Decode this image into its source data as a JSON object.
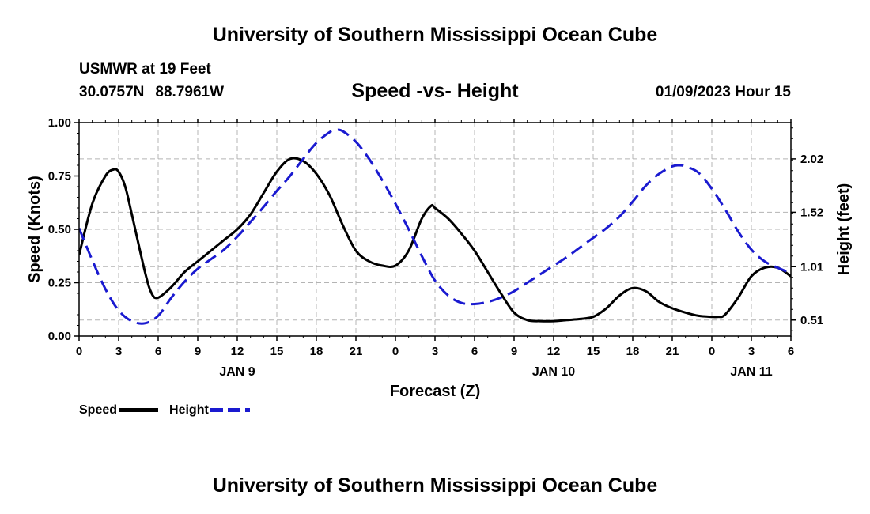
{
  "header": {
    "title": "University of Southern Mississippi Ocean Cube",
    "station": "USMWR at 19 Feet",
    "lat": "30.0757N",
    "lon": "88.7961W",
    "subtitle": "Speed -vs- Height",
    "datetime": "01/09/2023 Hour 15"
  },
  "footer": {
    "title": "University of Southern Mississippi Ocean Cube"
  },
  "legend": {
    "speed": "Speed",
    "height": "Height"
  },
  "colors": {
    "speed": "#000000",
    "height": "#1a1ad0",
    "grid": "#b4b4b4"
  },
  "chart_data": {
    "type": "line",
    "title": "Speed -vs- Height",
    "xlabel": "Forecast (Z)",
    "ylabel": "Speed (Knots)",
    "y2label": "Height (feet)",
    "x_range": [
      0,
      54
    ],
    "ylim": [
      0,
      1.0
    ],
    "y2lim": [
      0.36,
      2.36
    ],
    "x_ticks": [
      0,
      3,
      6,
      9,
      12,
      15,
      18,
      21,
      24,
      27,
      30,
      33,
      36,
      39,
      42,
      45,
      48,
      51,
      54
    ],
    "x_tick_labels": [
      "0",
      "3",
      "6",
      "9",
      "12",
      "15",
      "18",
      "21",
      "0",
      "3",
      "6",
      "9",
      "12",
      "15",
      "18",
      "21",
      "0",
      "3",
      "6"
    ],
    "date_labels": [
      {
        "x": 12,
        "label": "JAN 9"
      },
      {
        "x": 36,
        "label": "JAN 10"
      },
      {
        "x": 51,
        "label": "JAN 11"
      }
    ],
    "y_ticks": [
      0.0,
      0.25,
      0.5,
      0.75,
      1.0
    ],
    "y_tick_labels": [
      "0.00",
      "0.25",
      "0.50",
      "0.75",
      "1.00"
    ],
    "y2_ticks": [
      0.51,
      1.01,
      1.52,
      2.02
    ],
    "y2_tick_labels": [
      "0.51",
      "1.01",
      "1.52",
      "2.02"
    ],
    "grid": true,
    "series": [
      {
        "name": "Speed",
        "axis": "left",
        "style": "solid",
        "x": [
          0,
          1,
          2,
          2.6,
          3,
          3.5,
          4,
          5,
          5.5,
          6,
          7,
          8,
          9,
          10,
          11,
          12,
          13,
          14,
          15,
          16,
          17,
          18,
          19,
          20,
          21,
          22,
          23,
          24,
          25,
          26,
          26.7,
          27,
          28,
          29,
          30,
          31,
          32,
          33,
          34,
          35,
          36,
          37,
          38,
          39,
          40,
          41,
          42,
          43,
          44,
          45,
          46,
          47,
          48,
          48.5,
          49,
          50,
          51,
          52,
          53,
          54
        ],
        "y": [
          0.38,
          0.62,
          0.75,
          0.78,
          0.77,
          0.7,
          0.57,
          0.3,
          0.2,
          0.18,
          0.23,
          0.3,
          0.35,
          0.4,
          0.45,
          0.5,
          0.57,
          0.67,
          0.77,
          0.83,
          0.82,
          0.76,
          0.66,
          0.52,
          0.4,
          0.35,
          0.33,
          0.33,
          0.4,
          0.55,
          0.61,
          0.6,
          0.55,
          0.48,
          0.4,
          0.3,
          0.2,
          0.11,
          0.075,
          0.07,
          0.07,
          0.075,
          0.08,
          0.09,
          0.13,
          0.19,
          0.225,
          0.21,
          0.16,
          0.13,
          0.11,
          0.095,
          0.09,
          0.09,
          0.1,
          0.18,
          0.28,
          0.32,
          0.32,
          0.28
        ]
      },
      {
        "name": "Height",
        "axis": "right",
        "style": "dashed",
        "x": [
          0,
          1,
          2,
          3,
          4,
          5,
          6,
          7,
          8,
          9,
          10,
          11,
          12,
          13,
          14,
          15,
          16,
          17,
          18,
          19,
          19.5,
          20,
          21,
          22,
          23,
          24,
          25,
          26,
          27,
          28,
          29,
          30,
          31,
          32,
          33,
          34,
          35,
          36,
          37,
          38,
          39,
          40,
          41,
          42,
          43,
          44,
          45,
          45.5,
          46,
          47,
          48,
          49,
          50,
          51,
          52,
          53,
          54
        ],
        "y": [
          1.37,
          1.07,
          0.8,
          0.6,
          0.5,
          0.48,
          0.55,
          0.72,
          0.87,
          0.99,
          1.08,
          1.17,
          1.29,
          1.43,
          1.57,
          1.72,
          1.86,
          2.02,
          2.17,
          2.27,
          2.29,
          2.28,
          2.18,
          2.02,
          1.82,
          1.6,
          1.36,
          1.11,
          0.88,
          0.74,
          0.67,
          0.66,
          0.68,
          0.72,
          0.78,
          0.86,
          0.94,
          1.02,
          1.1,
          1.19,
          1.28,
          1.37,
          1.48,
          1.62,
          1.77,
          1.88,
          1.95,
          1.96,
          1.95,
          1.89,
          1.74,
          1.55,
          1.34,
          1.17,
          1.06,
          1.0,
          0.95
        ]
      }
    ]
  }
}
